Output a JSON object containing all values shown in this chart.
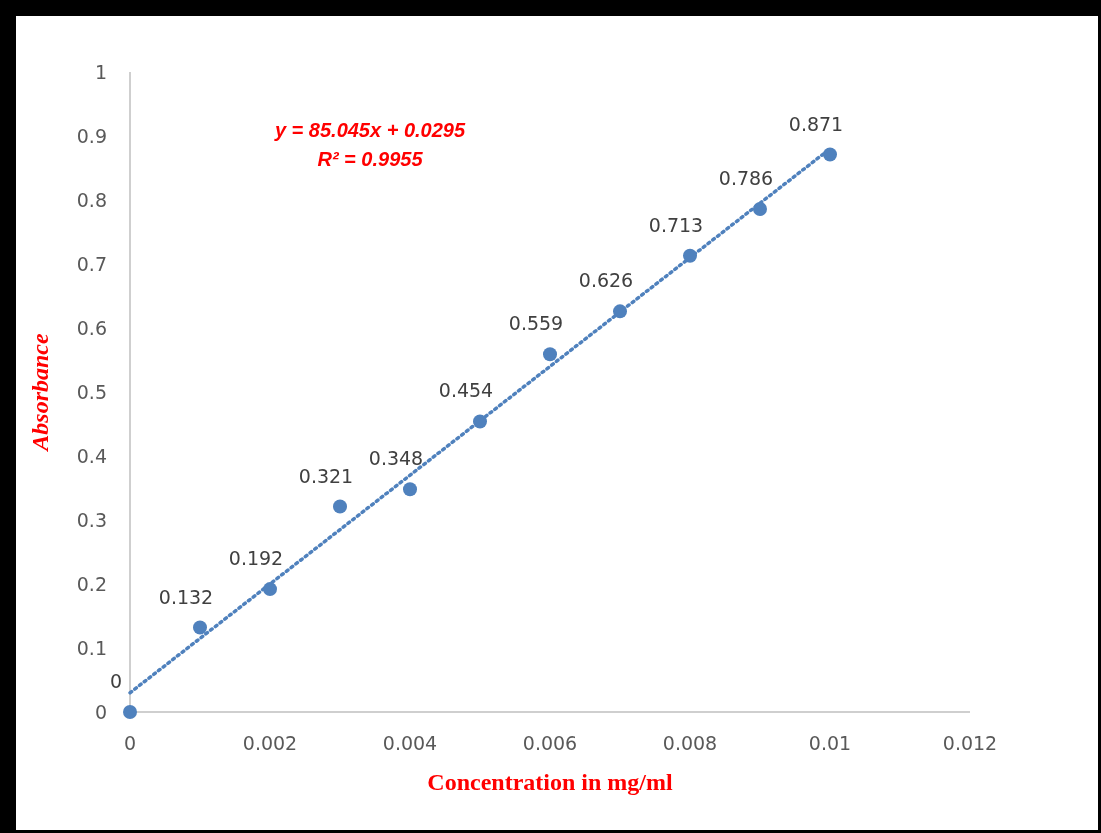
{
  "chart_data": {
    "type": "scatter",
    "xlabel": "Concentration in mg/ml",
    "ylabel": "Absorbance",
    "annotations": [
      "y = 85.045x + 0.0295",
      "R² = 0.9955"
    ],
    "xlim": [
      0,
      0.012
    ],
    "xticks": [
      0,
      0.002,
      0.004,
      0.006,
      0.008,
      0.01,
      0.012
    ],
    "ylim": [
      0,
      1
    ],
    "yticks": [
      0,
      0.1,
      0.2,
      0.3,
      0.4,
      0.5,
      0.6,
      0.7,
      0.8,
      0.9,
      1
    ],
    "marker": "circle",
    "series": [
      {
        "type": "scatter",
        "color": "#4f81bd",
        "x": [
          0,
          0.001,
          0.002,
          0.003,
          0.004,
          0.005,
          0.006,
          0.007,
          0.008,
          0.009,
          0.01
        ],
        "values": [
          0,
          0.132,
          0.192,
          0.321,
          0.348,
          0.454,
          0.559,
          0.626,
          0.713,
          0.786,
          0.871
        ],
        "value_labels": [
          "0",
          "0.132",
          "0.192",
          "0.321",
          "0.348",
          "0.454",
          "0.559",
          "0.626",
          "0.713",
          "0.786",
          "0.871"
        ]
      },
      {
        "type": "line",
        "color": "#4f81bd",
        "line_style": "dotted",
        "marker": "none",
        "x": [
          0,
          0.01
        ],
        "values": [
          0.03,
          0.88
        ]
      }
    ]
  }
}
